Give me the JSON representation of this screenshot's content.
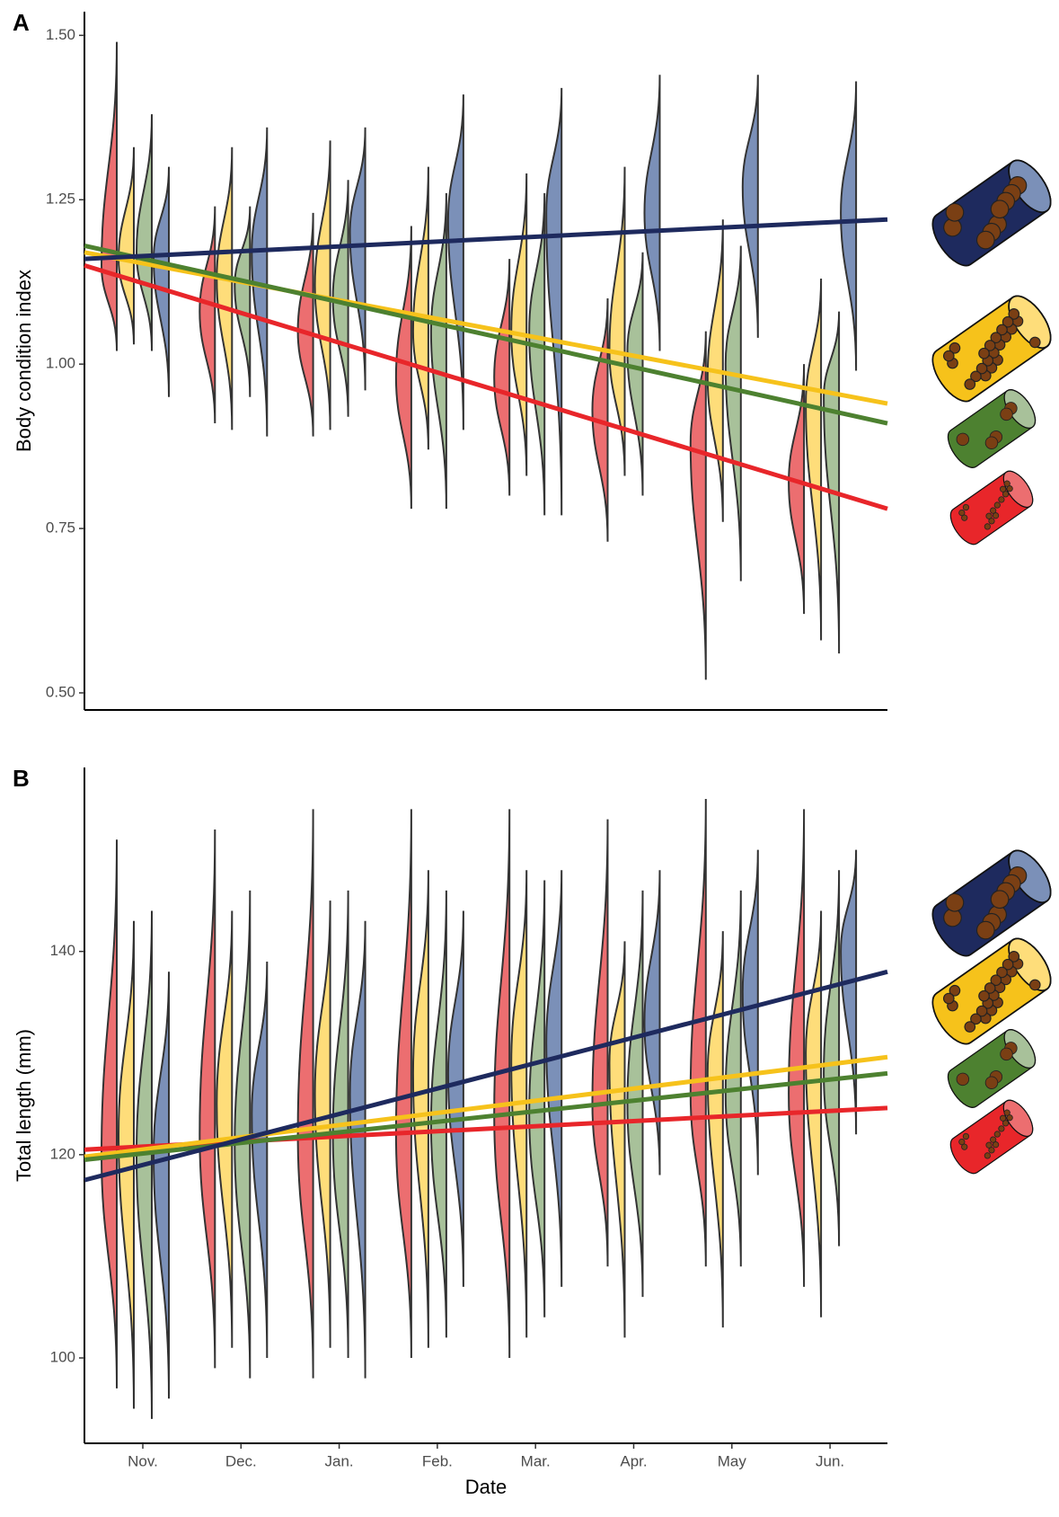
{
  "chart_data": [
    {
      "type": "half-violin",
      "panel_label": "A",
      "y_label": "Body condition index",
      "ylim": [
        0.474,
        1.536
      ],
      "yticks": [
        {
          "value": 0.5,
          "label": "0.50"
        },
        {
          "value": 0.75,
          "label": "0.75"
        },
        {
          "value": 1.0,
          "label": "1.00"
        },
        {
          "value": 1.25,
          "label": "1.25"
        },
        {
          "value": 1.5,
          "label": "1.50"
        }
      ],
      "series": [
        {
          "color": "#ec6e70",
          "line_color": "#e8262a",
          "min": [
            1.02,
            0.91,
            0.89,
            0.78,
            0.8,
            0.73,
            0.52,
            0.62
          ],
          "max": [
            1.49,
            1.24,
            1.23,
            1.21,
            1.16,
            1.1,
            1.05,
            1.0
          ],
          "peak": [
            1.15,
            1.08,
            1.05,
            0.98,
            0.98,
            0.93,
            0.88,
            0.82
          ],
          "trend": [
            1.15,
            0.78
          ]
        },
        {
          "color": "#fedd7a",
          "line_color": "#f6c21b",
          "min": [
            1.03,
            0.9,
            0.9,
            0.87,
            0.83,
            0.83,
            0.76,
            0.58
          ],
          "max": [
            1.33,
            1.33,
            1.34,
            1.3,
            1.29,
            1.3,
            1.22,
            1.13
          ],
          "peak": [
            1.16,
            1.13,
            1.12,
            1.05,
            1.05,
            1.02,
            0.98,
            0.94
          ],
          "trend": [
            1.17,
            0.94
          ]
        },
        {
          "color": "#a8c19a",
          "line_color": "#4d8130",
          "min": [
            1.02,
            0.95,
            0.92,
            0.78,
            0.77,
            0.8,
            0.67,
            0.56
          ],
          "max": [
            1.38,
            1.24,
            1.28,
            1.26,
            1.26,
            1.17,
            1.18,
            1.08
          ],
          "peak": [
            1.17,
            1.12,
            1.1,
            1.05,
            1.05,
            1.02,
            1.0,
            0.95
          ],
          "trend": [
            1.18,
            0.91
          ]
        },
        {
          "color": "#7b90b8",
          "line_color": "#1e2a5e",
          "min": [
            0.95,
            0.89,
            0.96,
            0.9,
            0.77,
            1.02,
            1.04,
            0.99
          ],
          "max": [
            1.3,
            1.36,
            1.36,
            1.41,
            1.42,
            1.44,
            1.44,
            1.43
          ],
          "peak": [
            1.16,
            1.17,
            1.2,
            1.22,
            1.23,
            1.23,
            1.27,
            1.23
          ],
          "trend": [
            1.16,
            1.22
          ]
        }
      ]
    },
    {
      "type": "half-violin",
      "panel_label": "B",
      "y_label": "Total length (mm)",
      "x_label": "Date",
      "categories": [
        "Nov.",
        "Dec.",
        "Jan.",
        "Feb.",
        "Mar.",
        "Apr.",
        "May",
        "Jun."
      ],
      "ylim": [
        91.6,
        158.1
      ],
      "yticks": [
        100,
        120,
        140
      ],
      "series": [
        {
          "color": "#ec6e70",
          "line_color": "#e8262a",
          "min": [
            97,
            99,
            98,
            100,
            100,
            109,
            109,
            107
          ],
          "max": [
            151,
            152,
            154,
            154,
            154,
            153,
            155,
            154
          ],
          "peak": [
            120,
            122,
            122,
            122,
            124,
            125,
            126,
            126
          ],
          "trend": [
            120.5,
            124.6
          ]
        },
        {
          "color": "#fedd7a",
          "line_color": "#f6c21b",
          "min": [
            95,
            101,
            101,
            101,
            102,
            102,
            103,
            104
          ],
          "max": [
            143,
            144,
            145,
            148,
            148,
            141,
            142,
            144
          ],
          "peak": [
            122,
            125,
            126,
            128,
            129,
            129,
            128,
            130
          ],
          "trend": [
            119.8,
            129.6
          ]
        },
        {
          "color": "#a8c19a",
          "line_color": "#4d8130",
          "min": [
            94,
            98,
            100,
            102,
            104,
            106,
            109,
            111
          ],
          "max": [
            144,
            146,
            146,
            146,
            147,
            146,
            146,
            148
          ],
          "peak": [
            120,
            121,
            122,
            123,
            124,
            125,
            126,
            128
          ],
          "trend": [
            119.5,
            128
          ]
        },
        {
          "color": "#7b90b8",
          "line_color": "#1e2a5e",
          "min": [
            96,
            100,
            98,
            107,
            107,
            118,
            118,
            122
          ],
          "max": [
            138,
            139,
            143,
            144,
            148,
            148,
            150,
            150
          ],
          "peak": [
            120,
            124,
            126,
            128,
            131,
            133,
            136,
            140
          ],
          "trend": [
            117.5,
            138
          ]
        }
      ]
    }
  ]
}
